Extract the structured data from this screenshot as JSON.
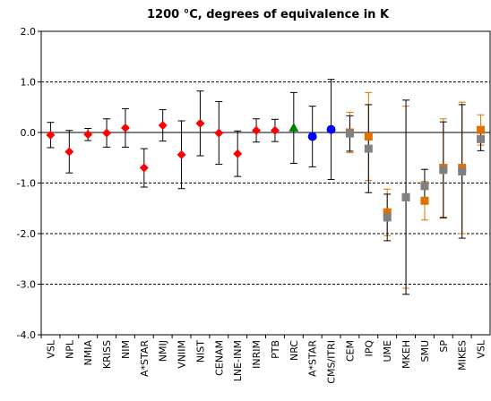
{
  "chart_data": {
    "type": "scatter",
    "title": "1200 °C, degrees of equivalence in K",
    "xlabel": "",
    "ylabel": "",
    "ylim": [
      -4.0,
      2.0
    ],
    "yticks": [
      "2.0",
      "1.0",
      "0.0",
      "-1.0",
      "-2.0",
      "-3.0",
      "-4.0"
    ],
    "ytick_values": [
      2,
      1,
      0,
      -1,
      -2,
      -3,
      -4
    ],
    "gridlines": [
      1,
      -1,
      -2,
      -3
    ],
    "grid": "dashed horizontal",
    "categories": [
      "VSL",
      "NPL",
      "NMIA",
      "KRISS",
      "NIM",
      "A*STAR",
      "NMIJ",
      "VNIIM",
      "NIST",
      "CENAM",
      "LNE-INM",
      "INRIM",
      "PTB",
      "NRC",
      "A*STAR",
      "CMS/ITRI",
      "CEM",
      "IPQ",
      "UME",
      "MKEH",
      "SMU",
      "SP",
      "MIKES",
      "VSL"
    ],
    "colors": {
      "red": "#ff0000",
      "green": "#008000",
      "blue": "#0000ff",
      "orange": "#e07000",
      "gray": "#808080",
      "error": "#000000"
    },
    "series": [
      {
        "marker": "diamond",
        "color": "red",
        "points": [
          {
            "i": 0,
            "y": -0.05,
            "u": 0.25
          },
          {
            "i": 1,
            "y": -0.38,
            "u": 0.42
          },
          {
            "i": 2,
            "y": -0.04,
            "u": 0.12
          },
          {
            "i": 3,
            "y": -0.01,
            "u": 0.28
          },
          {
            "i": 4,
            "y": 0.09,
            "u": 0.38
          },
          {
            "i": 5,
            "y": -0.7,
            "u": 0.38
          },
          {
            "i": 6,
            "y": 0.14,
            "u": 0.31
          },
          {
            "i": 7,
            "y": -0.44,
            "u": 0.67
          },
          {
            "i": 8,
            "y": 0.18,
            "u": 0.64
          },
          {
            "i": 9,
            "y": -0.01,
            "u": 0.62
          },
          {
            "i": 10,
            "y": -0.42,
            "u": 0.45
          },
          {
            "i": 11,
            "y": 0.04,
            "u": 0.23
          },
          {
            "i": 12,
            "y": 0.04,
            "u": 0.22
          }
        ]
      },
      {
        "marker": "triangle",
        "color": "green",
        "points": [
          {
            "i": 13,
            "y": 0.09,
            "u": 0.7
          }
        ]
      },
      {
        "marker": "circle",
        "color": "blue",
        "points": [
          {
            "i": 14,
            "y": -0.08,
            "u": 0.6
          },
          {
            "i": 15,
            "y": 0.06,
            "u": 0.99
          }
        ]
      },
      {
        "marker": "square",
        "color": "orange",
        "points": [
          {
            "i": 16,
            "y": 0.0,
            "u": 0.4
          },
          {
            "i": 17,
            "y": -0.08,
            "u": 0.87
          },
          {
            "i": 18,
            "y": -1.58,
            "u": 0.46
          },
          {
            "i": 19,
            "y": -1.28,
            "u": 1.8
          },
          {
            "i": 20,
            "y": -1.35,
            "u": 0.38
          },
          {
            "i": 21,
            "y": -0.7,
            "u": 0.97
          },
          {
            "i": 22,
            "y": -0.7,
            "u": 1.3
          },
          {
            "i": 23,
            "y": 0.05,
            "u": 0.3
          }
        ]
      },
      {
        "marker": "square",
        "color": "gray",
        "points": [
          {
            "i": 16,
            "y": -0.02,
            "u": 0.35
          },
          {
            "i": 17,
            "y": -0.32,
            "u": 0.87
          },
          {
            "i": 18,
            "y": -1.68,
            "u": 0.46
          },
          {
            "i": 19,
            "y": -1.28,
            "u": 1.92
          },
          {
            "i": 20,
            "y": -1.06,
            "u": 0.33
          },
          {
            "i": 21,
            "y": -0.74,
            "u": 0.95
          },
          {
            "i": 22,
            "y": -0.77,
            "u": 1.32
          },
          {
            "i": 23,
            "y": -0.13,
            "u": 0.23
          }
        ]
      }
    ]
  }
}
